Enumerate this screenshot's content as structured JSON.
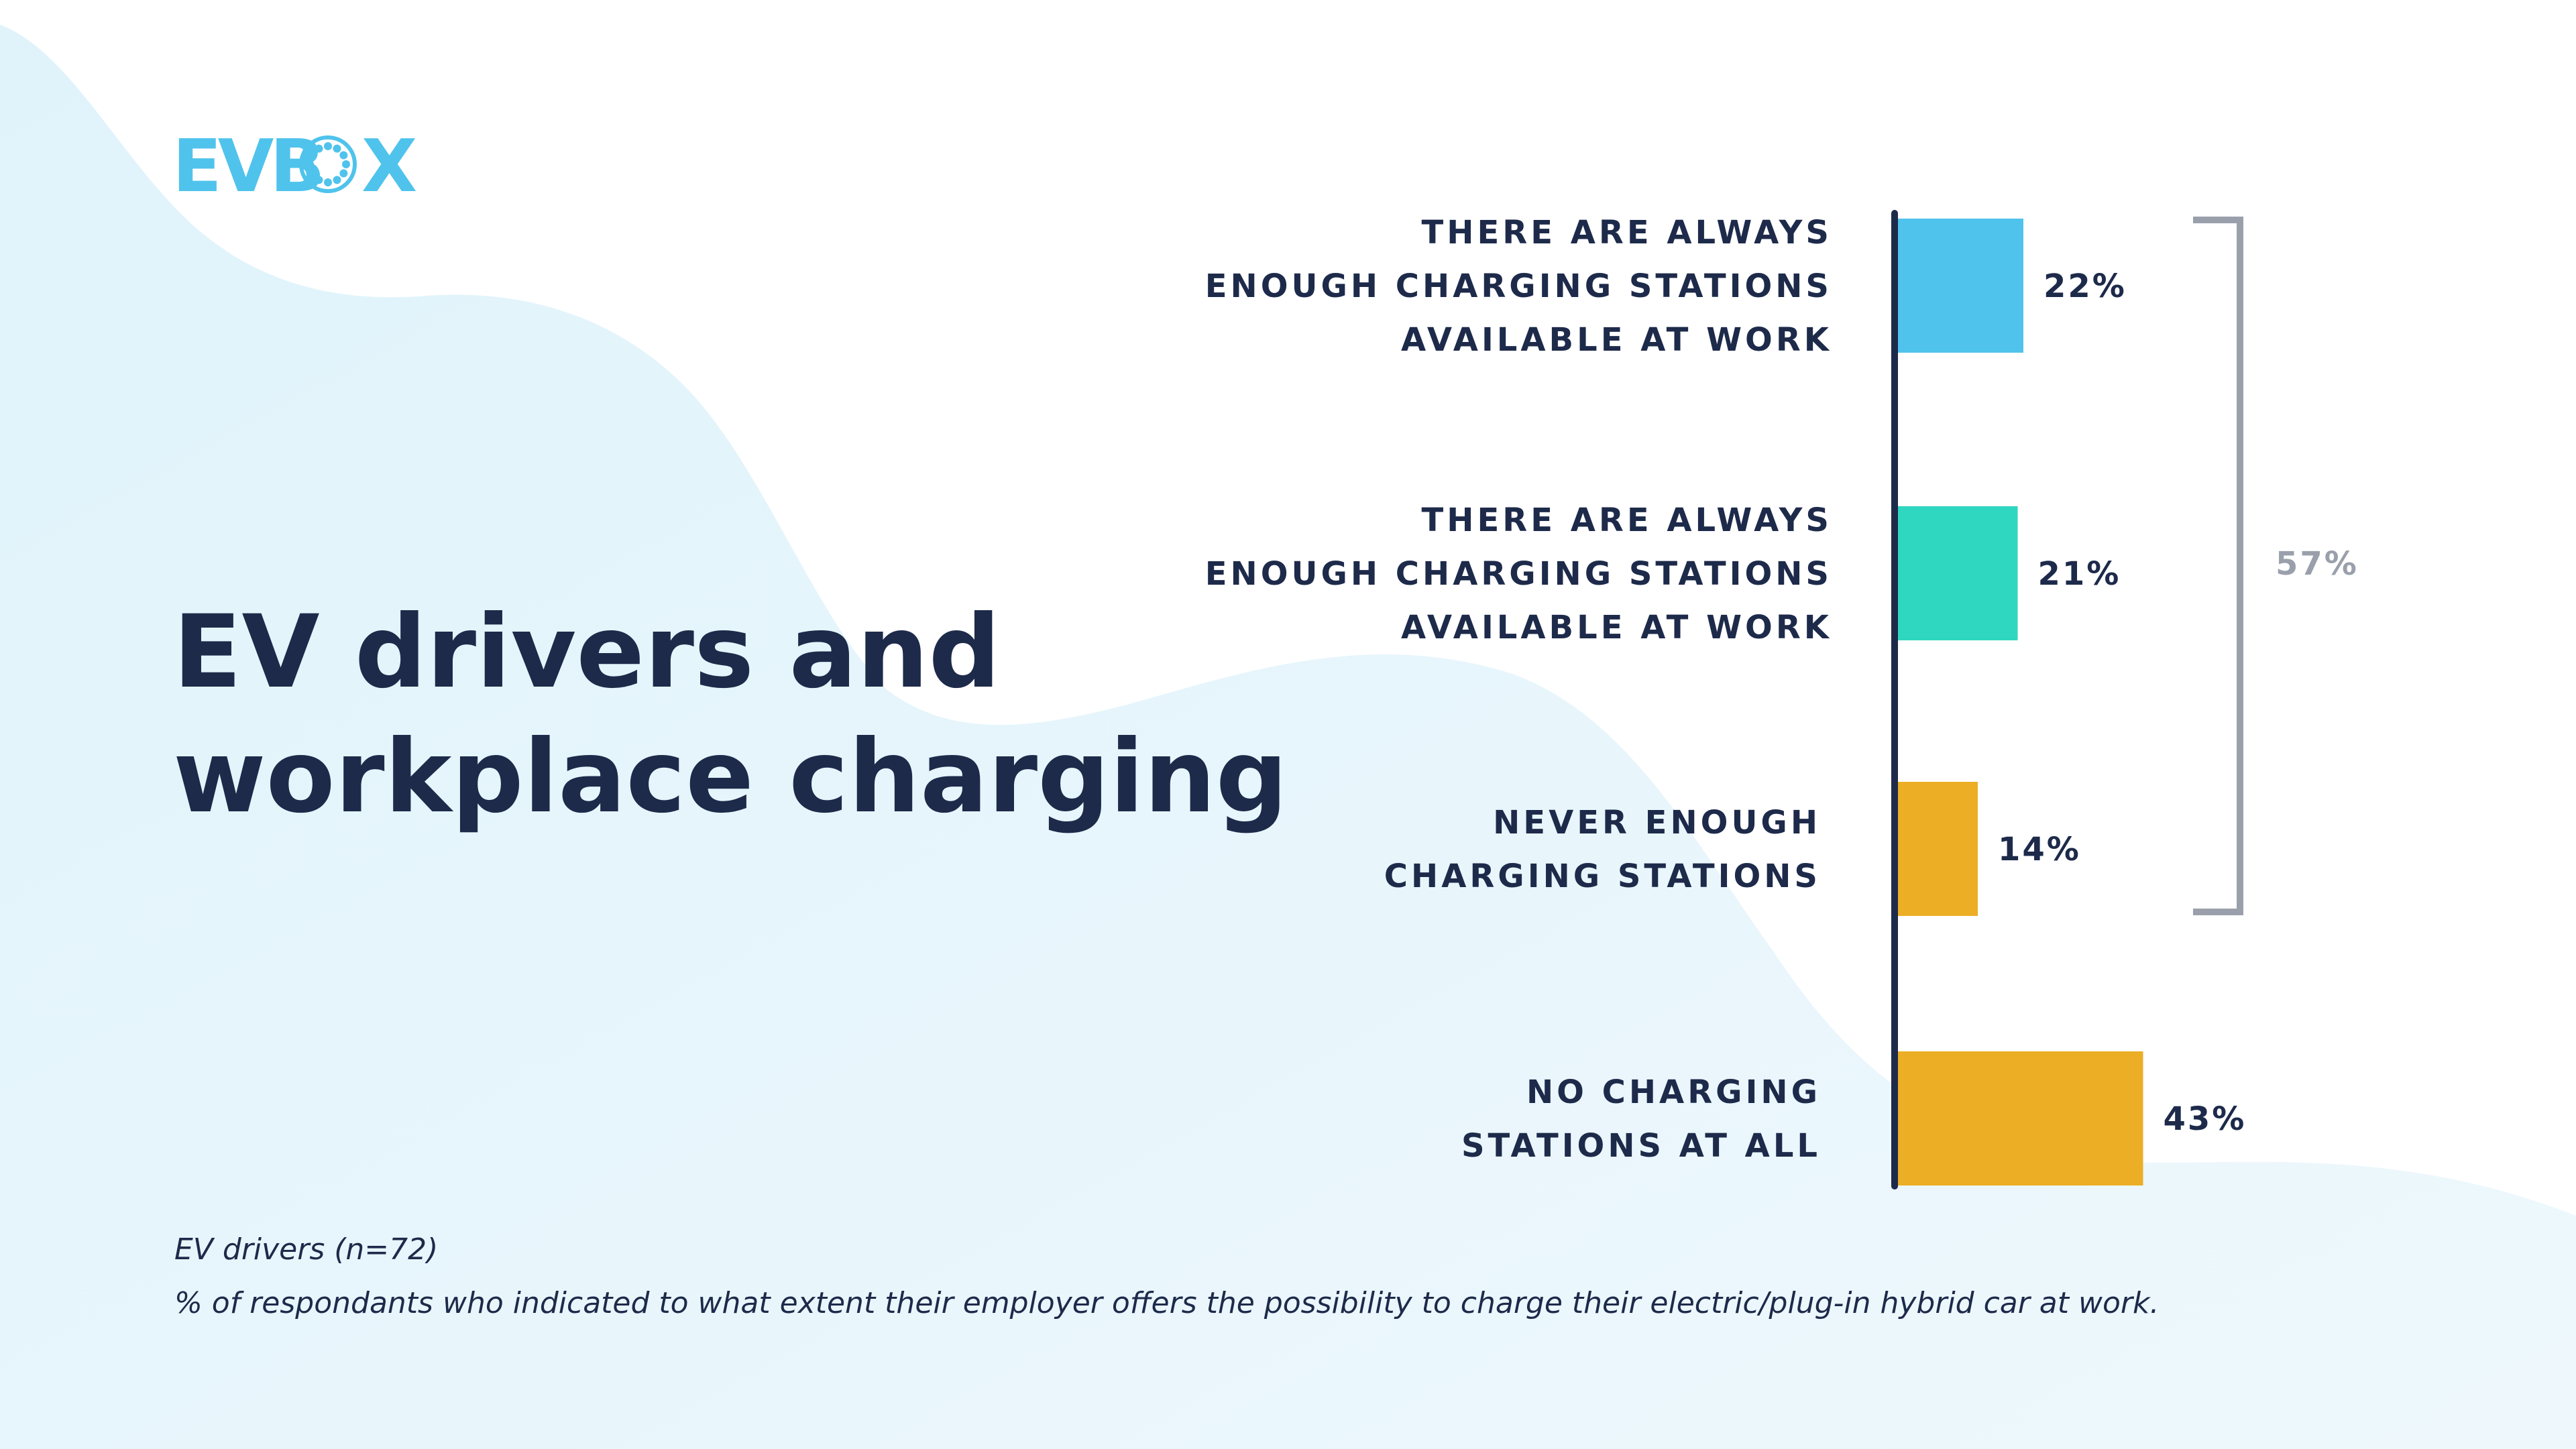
{
  "logo": {
    "text": "EVBOX",
    "color": "#4fc3ec"
  },
  "title": {
    "line1": "EV drivers and",
    "line2": "workplace charging"
  },
  "footnote": {
    "line1": "EV drivers (n=72)",
    "line2": "% of respondants who indicated to what extent their employer offers the possibility to charge their electric/plug-in hybrid car at work."
  },
  "chart_data": {
    "type": "bar",
    "orientation": "horizontal",
    "categories": [
      [
        "THERE ARE ALWAYS",
        "ENOUGH CHARGING STATIONS",
        "AVAILABLE AT WORK"
      ],
      [
        "THERE ARE ALWAYS",
        "ENOUGH CHARGING STATIONS",
        "AVAILABLE AT WORK"
      ],
      [
        "NEVER ENOUGH",
        "CHARGING STATIONS"
      ],
      [
        "NO CHARGING",
        "STATIONS AT ALL"
      ]
    ],
    "values": [
      22,
      21,
      14,
      43
    ],
    "value_labels": [
      "22%",
      "21%",
      "14%",
      "43%"
    ],
    "colors": [
      "#4fc3ec",
      "#2fd6c0",
      "#ecae24",
      "#ecae24"
    ],
    "bracket": {
      "covers": [
        0,
        1,
        2
      ],
      "label": "57%",
      "color": "#9aa0ab"
    },
    "axis_color": "#1d2a4a",
    "grid": false,
    "legend": "none"
  }
}
